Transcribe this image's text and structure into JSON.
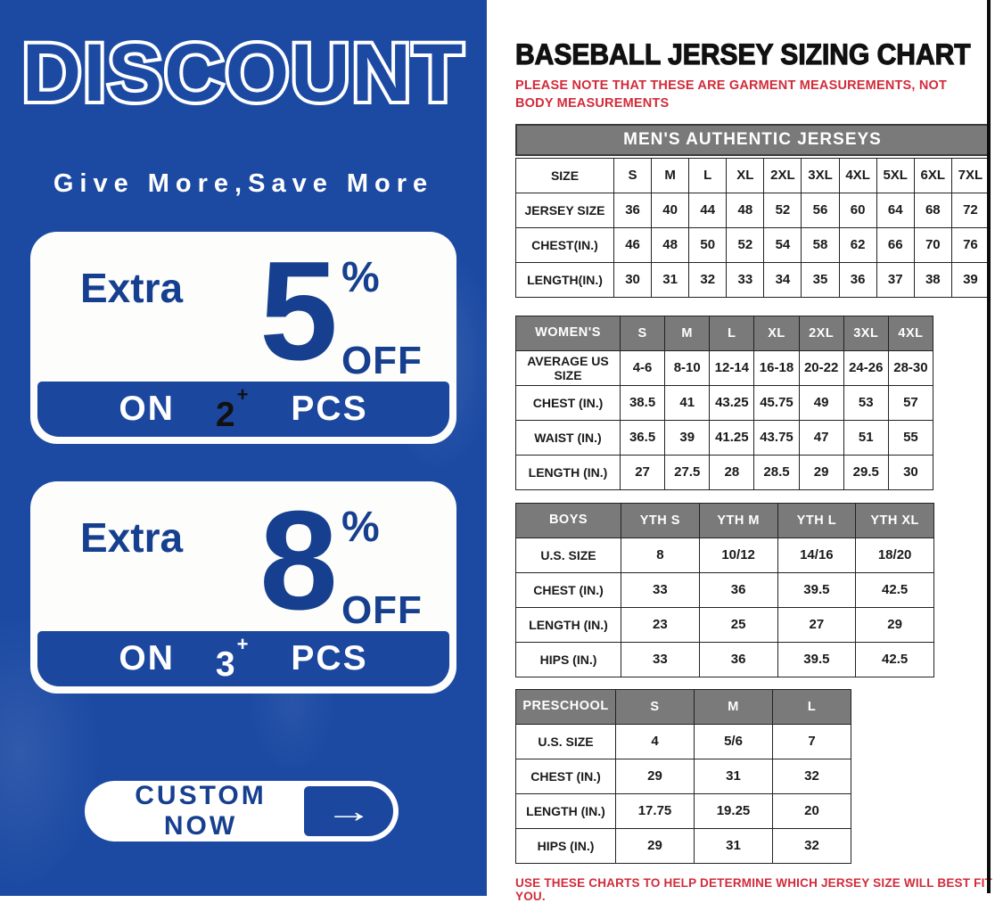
{
  "colors": {
    "panel_blue": "#1c4aa3",
    "navy_text": "#16408f",
    "band_blue": "#1c479e",
    "header_gray": "#7a7a7a",
    "alert_red": "#d22b3a",
    "qty2_color": "#111111",
    "qty3_color": "#ffffff"
  },
  "left_panel": {
    "title": "DISCOUNT",
    "tagline": "Give More,Save More",
    "offers": [
      {
        "prefix": "Extra",
        "value": "5",
        "unit": "%",
        "suffix": "OFF",
        "on_label": "ON",
        "qty": "2",
        "plus": "+",
        "pcs": "PCS",
        "qty_color": "#111111"
      },
      {
        "prefix": "Extra",
        "value": "8",
        "unit": "%",
        "suffix": "OFF",
        "on_label": "ON",
        "qty": "3",
        "plus": "+",
        "pcs": "PCS",
        "qty_color": "#ffffff"
      }
    ],
    "cta": {
      "label": "CUSTOM NOW",
      "arrow_glyph": "→"
    }
  },
  "right_panel": {
    "title": "BASEBALL JERSEY SIZING CHART",
    "note": "PLEASE NOTE THAT THESE ARE GARMENT MEASUREMENTS, NOT BODY MEASUREMENTS",
    "mens_banner": "MEN'S AUTHENTIC JERSEYS",
    "footer_note": "USE THESE CHARTS TO HELP DETERMINE WHICH JERSEY SIZE WILL BEST FIT YOU.",
    "tables": {
      "mens": {
        "header_gray": false,
        "header": [
          "SIZE",
          "S",
          "M",
          "L",
          "XL",
          "2XL",
          "3XL",
          "4XL",
          "5XL",
          "6XL",
          "7XL"
        ],
        "rows": [
          [
            "JERSEY SIZE",
            "36",
            "40",
            "44",
            "48",
            "52",
            "56",
            "60",
            "64",
            "68",
            "72"
          ],
          [
            "CHEST(IN.)",
            "46",
            "48",
            "50",
            "52",
            "54",
            "58",
            "62",
            "66",
            "70",
            "76"
          ],
          [
            "LENGTH(IN.)",
            "30",
            "31",
            "32",
            "33",
            "34",
            "35",
            "36",
            "37",
            "38",
            "39"
          ]
        ]
      },
      "womens": {
        "header_gray": true,
        "header": [
          "WOMEN'S",
          "S",
          "M",
          "L",
          "XL",
          "2XL",
          "3XL",
          "4XL"
        ],
        "rows": [
          [
            "AVERAGE US SIZE",
            "4-6",
            "8-10",
            "12-14",
            "16-18",
            "20-22",
            "24-26",
            "28-30"
          ],
          [
            "CHEST (IN.)",
            "38.5",
            "41",
            "43.25",
            "45.75",
            "49",
            "53",
            "57"
          ],
          [
            "WAIST (IN.)",
            "36.5",
            "39",
            "41.25",
            "43.75",
            "47",
            "51",
            "55"
          ],
          [
            "LENGTH (IN.)",
            "27",
            "27.5",
            "28",
            "28.5",
            "29",
            "29.5",
            "30"
          ]
        ]
      },
      "boys": {
        "header_gray": true,
        "header": [
          "BOYS",
          "YTH S",
          "YTH M",
          "YTH L",
          "YTH XL"
        ],
        "rows": [
          [
            "U.S. SIZE",
            "8",
            "10/12",
            "14/16",
            "18/20"
          ],
          [
            "CHEST (IN.)",
            "33",
            "36",
            "39.5",
            "42.5"
          ],
          [
            "LENGTH (IN.)",
            "23",
            "25",
            "27",
            "29"
          ],
          [
            "HIPS (IN.)",
            "33",
            "36",
            "39.5",
            "42.5"
          ]
        ]
      },
      "preschool": {
        "header_gray": true,
        "header": [
          "PRESCHOOL",
          "S",
          "M",
          "L"
        ],
        "rows": [
          [
            "U.S. SIZE",
            "4",
            "5/6",
            "7"
          ],
          [
            "CHEST (IN.)",
            "29",
            "31",
            "32"
          ],
          [
            "LENGTH (IN.)",
            "17.75",
            "19.25",
            "20"
          ],
          [
            "HIPS (IN.)",
            "29",
            "31",
            "32"
          ]
        ]
      }
    }
  }
}
